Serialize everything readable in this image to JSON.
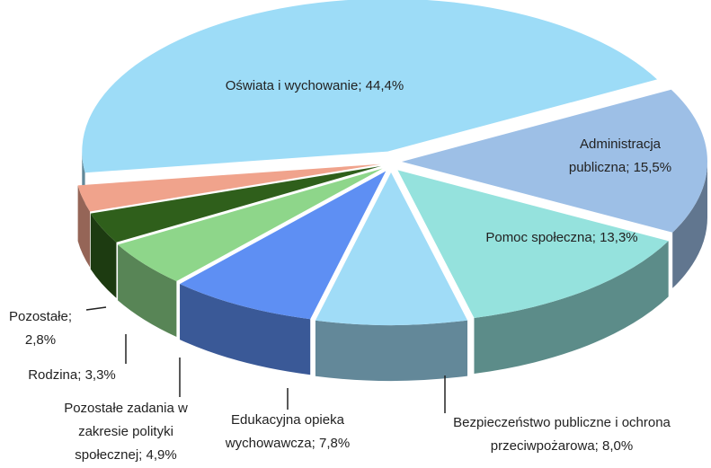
{
  "chart_data": {
    "type": "pie",
    "categories": [
      "Oświata i wychowanie;",
      "Administracja publiczna;",
      "Pomoc społeczna;",
      "Bezpieczeństwo publiczne i ochrona przeciwpożarowa;",
      "Edukacyjna opieka wychowawcza;",
      "Pozostałe zadania w zakresie polityki społecznej;",
      "Rodzina;",
      "Pozostałe;"
    ],
    "values": [
      44.4,
      15.5,
      13.3,
      8.0,
      7.8,
      4.9,
      3.3,
      2.8
    ],
    "value_labels": [
      "44,4%",
      "15,5%",
      "13,3%",
      "8,0%",
      "7,8%",
      "4,9%",
      "3,3%",
      "2,8%"
    ],
    "colors": [
      "#9ddcf7",
      "#9dbfe6",
      "#95e2dd",
      "#a0dcf7",
      "#5e8ff3",
      "#8ed68a",
      "#2f5f1b",
      "#f0a38c"
    ]
  }
}
